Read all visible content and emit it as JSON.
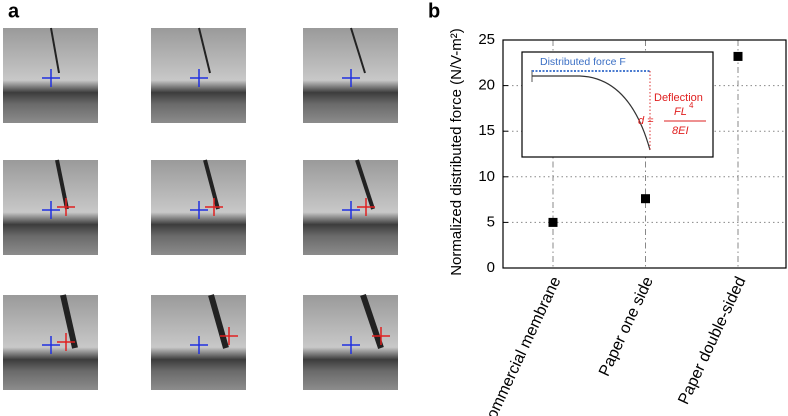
{
  "panel_labels": [
    "a",
    "b"
  ],
  "chart_data": {
    "type": "scatter",
    "y_label": "Normalized distributed force (N/V-m²)",
    "categories": [
      "Commercial membrane",
      "Paper one side",
      "Paper double-sided"
    ],
    "values": [
      5,
      7.6,
      23.2
    ],
    "color": "#000000",
    "ylim": [
      0,
      25
    ],
    "yticks": [
      0,
      5,
      10,
      15,
      20,
      25
    ],
    "grid": true,
    "inset": {
      "force_label": "Distributed force F",
      "deflection_label": "Deflection",
      "formula_lhs": "d =",
      "formula_numerator": "FL",
      "formula_exponent": "4",
      "formula_denominator": "8EI"
    }
  }
}
